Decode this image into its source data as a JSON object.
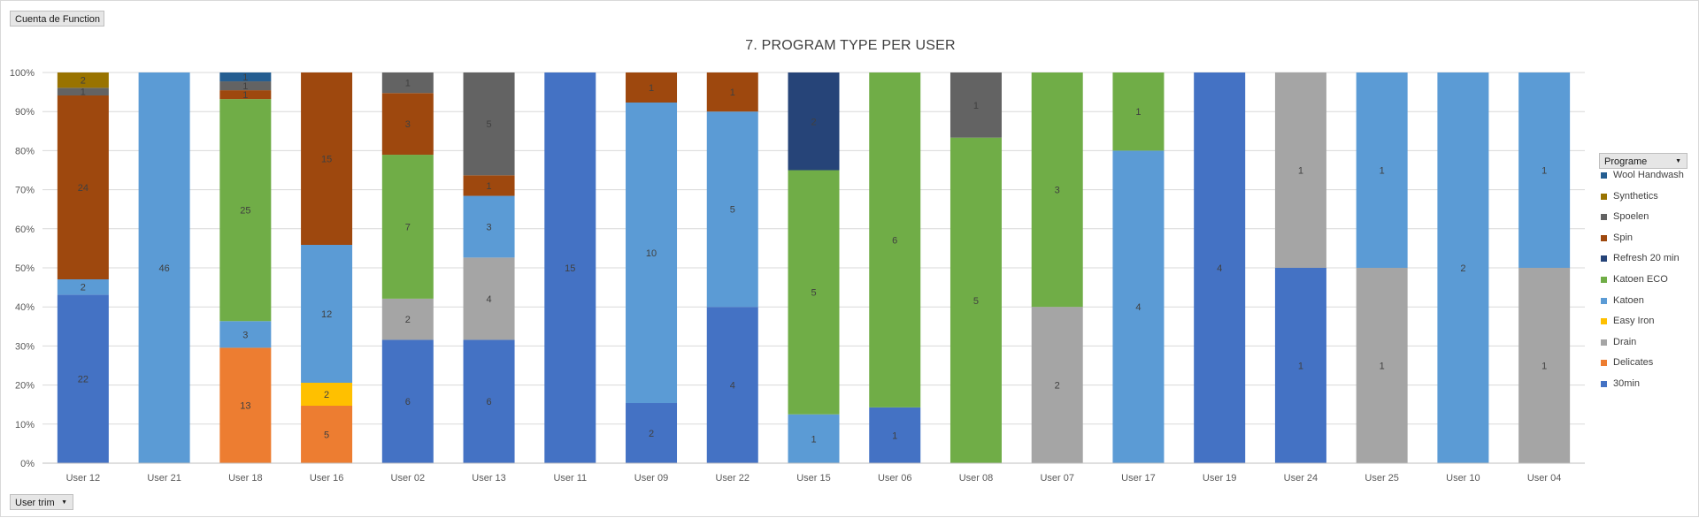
{
  "buttons": {
    "report_filter": "Cuenta de Function",
    "axis_field": "User trim",
    "legend_field": "Programe",
    "dropdown_glyph": "▼"
  },
  "chart_data": {
    "type": "bar",
    "stacked": "percent",
    "title": "7. PROGRAM TYPE PER USER",
    "xlabel": "",
    "ylabel": "",
    "ylim": [
      0,
      100
    ],
    "yticks": [
      "0%",
      "10%",
      "20%",
      "30%",
      "40%",
      "50%",
      "60%",
      "70%",
      "80%",
      "90%",
      "100%"
    ],
    "grid": true,
    "legend_position": "right",
    "categories": [
      "User 12",
      "User 21",
      "User 18",
      "User 16",
      "User 02",
      "User 13",
      "User 11",
      "User 09",
      "User 22",
      "User 15",
      "User 06",
      "User 08",
      "User 07",
      "User 17",
      "User 19",
      "User 24",
      "User 25",
      "User 10",
      "User 04"
    ],
    "series": [
      {
        "name": "30min",
        "color": "#4472c4",
        "values": [
          22,
          0,
          0,
          0,
          6,
          6,
          15,
          2,
          4,
          0,
          1,
          0,
          0,
          0,
          4,
          1,
          0,
          0,
          0
        ]
      },
      {
        "name": "Delicates",
        "color": "#ed7d31",
        "values": [
          0,
          0,
          13,
          5,
          0,
          0,
          0,
          0,
          0,
          0,
          0,
          0,
          0,
          0,
          0,
          0,
          0,
          0,
          0
        ]
      },
      {
        "name": "Drain",
        "color": "#a5a5a5",
        "values": [
          0,
          0,
          0,
          0,
          2,
          4,
          0,
          0,
          0,
          0,
          0,
          0,
          2,
          0,
          0,
          1,
          1,
          0,
          1
        ]
      },
      {
        "name": "Easy Iron",
        "color": "#ffc000",
        "values": [
          0,
          0,
          0,
          2,
          0,
          0,
          0,
          0,
          0,
          0,
          0,
          0,
          0,
          0,
          0,
          0,
          0,
          0,
          0
        ]
      },
      {
        "name": "Katoen",
        "color": "#5b9bd5",
        "values": [
          2,
          46,
          3,
          12,
          0,
          3,
          0,
          10,
          5,
          1,
          0,
          0,
          0,
          4,
          0,
          0,
          1,
          2,
          1
        ]
      },
      {
        "name": "Katoen ECO",
        "color": "#70ad47",
        "values": [
          0,
          0,
          25,
          0,
          7,
          0,
          0,
          0,
          0,
          5,
          6,
          5,
          3,
          1,
          0,
          0,
          0,
          0,
          0
        ]
      },
      {
        "name": "Refresh 20 min",
        "color": "#264478",
        "values": [
          0,
          0,
          0,
          0,
          0,
          0,
          0,
          0,
          0,
          2,
          0,
          0,
          0,
          0,
          0,
          0,
          0,
          0,
          0
        ]
      },
      {
        "name": "Spin",
        "color": "#9e480e",
        "values": [
          24,
          0,
          1,
          15,
          3,
          1,
          0,
          1,
          1,
          0,
          0,
          0,
          0,
          0,
          0,
          0,
          0,
          0,
          0
        ]
      },
      {
        "name": "Spoelen",
        "color": "#636363",
        "values": [
          1,
          0,
          1,
          0,
          1,
          5,
          0,
          0,
          0,
          0,
          0,
          1,
          0,
          0,
          0,
          0,
          0,
          0,
          0
        ]
      },
      {
        "name": "Synthetics",
        "color": "#997300",
        "values": [
          2,
          0,
          0,
          0,
          0,
          0,
          0,
          0,
          0,
          0,
          0,
          0,
          0,
          0,
          0,
          0,
          0,
          0,
          0
        ]
      },
      {
        "name": "Wool Handwash",
        "color": "#255e91",
        "values": [
          0,
          0,
          1,
          0,
          0,
          0,
          0,
          0,
          0,
          0,
          0,
          0,
          0,
          0,
          0,
          0,
          0,
          0,
          0
        ]
      }
    ]
  }
}
